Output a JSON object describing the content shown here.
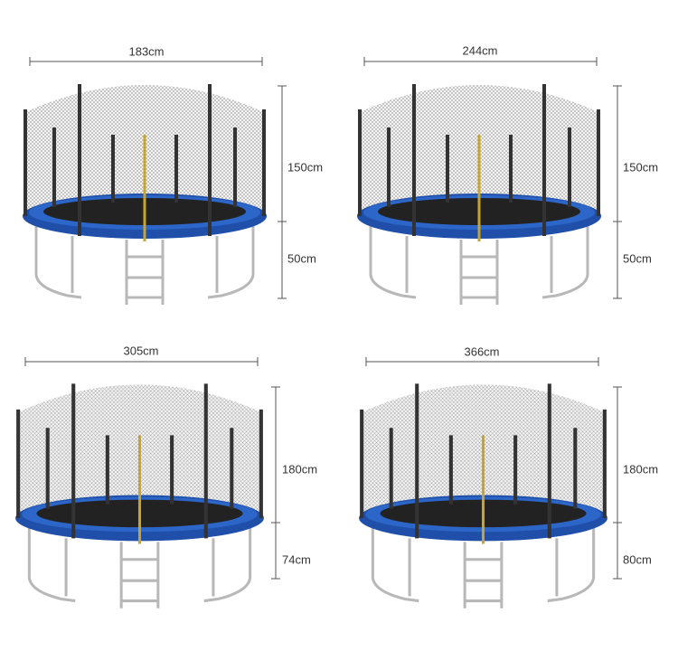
{
  "panels": [
    {
      "width": "183cm",
      "net_height": "150cm",
      "leg_height": "50cm"
    },
    {
      "width": "244cm",
      "net_height": "150cm",
      "leg_height": "50cm"
    },
    {
      "width": "305cm",
      "net_height": "180cm",
      "leg_height": "74cm"
    },
    {
      "width": "366cm",
      "net_height": "180cm",
      "leg_height": "80cm"
    }
  ]
}
